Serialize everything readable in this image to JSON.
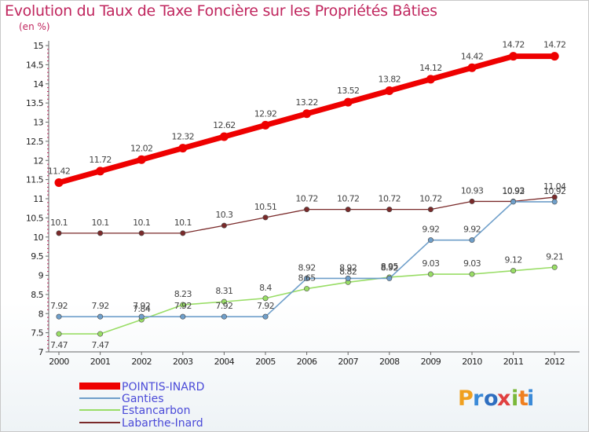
{
  "header": {
    "title": "Evolution du Taux de Taxe Foncière sur les Propriétés Bâties",
    "unit": "(en %)"
  },
  "logo": {
    "text": "Proxiti",
    "letters": [
      "P",
      "r",
      "o",
      "x",
      "i",
      "t",
      "i"
    ],
    "colors": [
      "#f0a020",
      "#3a8ad8",
      "#2f6fc0",
      "#e04040",
      "#7ab83a",
      "#f08020",
      "#3a8ad8"
    ]
  },
  "chart_data": {
    "type": "line",
    "title": "Evolution du Taux de Taxe Foncière sur les Propriétés Bâties",
    "ylabel": "(en %)",
    "xlabel": "",
    "x": [
      "2000",
      "2001",
      "2002",
      "2003",
      "2004",
      "2005",
      "2006",
      "2007",
      "2008",
      "2009",
      "2010",
      "2011",
      "2012"
    ],
    "ylim": [
      7,
      15
    ],
    "yticks": [
      "7",
      "7.5",
      "8",
      "8.5",
      "9",
      "9.5",
      "10",
      "10.5",
      "11",
      "11.5",
      "12",
      "12.5",
      "13",
      "13.5",
      "14",
      "14.5",
      "15"
    ],
    "legend_position": "bottom-left",
    "series": [
      {
        "name": "POINTIS-INARD",
        "color": "#ee0000",
        "values": [
          11.42,
          11.72,
          12.02,
          12.32,
          12.62,
          12.92,
          13.22,
          13.52,
          13.82,
          14.12,
          14.42,
          14.72,
          14.72
        ],
        "labels": [
          "11.42",
          "11.72",
          "12.02",
          "12.32",
          "12.62",
          "12.92",
          "13.22",
          "13.52",
          "13.82",
          "14.12",
          "14.42",
          "14.72",
          "14.72"
        ]
      },
      {
        "name": "Ganties",
        "color": "#6f9fca",
        "values": [
          7.92,
          7.92,
          7.92,
          7.92,
          7.92,
          7.92,
          8.92,
          8.92,
          8.92,
          9.92,
          9.92,
          10.92,
          10.92
        ],
        "labels": [
          "7.92",
          "7.92",
          "7.92",
          "7.92",
          "7.92",
          "7.92",
          "8.92",
          "8.92",
          "8.92",
          "9.92",
          "9.92",
          "10.92",
          "10.92"
        ]
      },
      {
        "name": "Estancarbon",
        "color": "#99dd66",
        "values": [
          7.47,
          7.47,
          7.84,
          8.23,
          8.31,
          8.4,
          8.65,
          8.82,
          8.95,
          9.03,
          9.03,
          9.12,
          9.21
        ],
        "labels": [
          "7.47",
          "7.47",
          "7.84",
          "8.23",
          "8.31",
          "8.4",
          "8.65",
          "8.82",
          "8.95",
          "9.03",
          "9.03",
          "9.12",
          "9.21"
        ]
      },
      {
        "name": "Labarthe-Inard",
        "color": "#7a2a2a",
        "values": [
          10.1,
          10.1,
          10.1,
          10.1,
          10.3,
          10.51,
          10.72,
          10.72,
          10.72,
          10.72,
          10.93,
          10.93,
          11.04
        ],
        "labels": [
          "10.1",
          "10.1",
          "10.1",
          "10.1",
          "10.3",
          "10.51",
          "10.72",
          "10.72",
          "10.72",
          "10.72",
          "10.93",
          "10.93",
          "11.04"
        ]
      }
    ]
  }
}
